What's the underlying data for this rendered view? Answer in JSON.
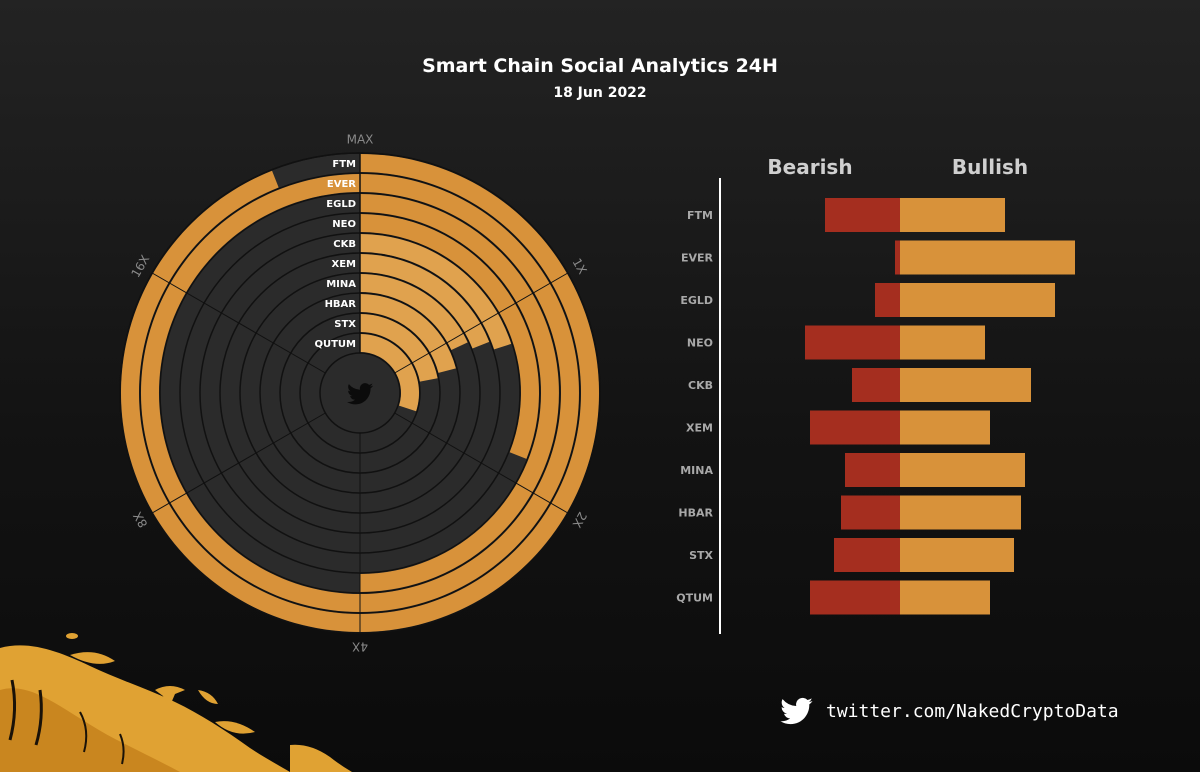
{
  "header": {
    "title": "Smart Chain Social Analytics 24H",
    "subtitle": "18 Jun 2022"
  },
  "footer": {
    "handle": "twitter.com/NakedCryptoData",
    "icon": "twitter-bird-icon"
  },
  "center_icon": "twitter-bird-icon",
  "colors": {
    "accent": "#d8923a",
    "accent_light": "#e0a24e",
    "bearish": "#a52e1f",
    "ring_bg": "#2b2b2b",
    "ring_line": "#111111"
  },
  "chart_data": [
    {
      "type": "radial-bar",
      "scale": "log",
      "axis_ticks": [
        "MAX",
        "1X",
        "2X",
        "4X",
        "8X",
        "16X"
      ],
      "categories": [
        "FTM",
        "EVER",
        "EGLD",
        "NEO",
        "CKB",
        "XEM",
        "MINA",
        "HBAR",
        "STX",
        "QUTUM"
      ],
      "values_fraction_of_max": [
        0.94,
        1.0,
        0.5,
        0.31,
        0.2,
        0.19,
        0.18,
        0.21,
        0.22,
        0.3
      ]
    },
    {
      "type": "bar",
      "orientation": "horizontal-diverging",
      "legend": [
        "Bearish",
        "Bullish"
      ],
      "categories": [
        "FTM",
        "EVER",
        "EGLD",
        "NEO",
        "CKB",
        "XEM",
        "MINA",
        "HBAR",
        "STX",
        "QTUM"
      ],
      "series": [
        {
          "name": "Bearish",
          "values": [
            75,
            5,
            25,
            95,
            48,
            90,
            55,
            59,
            66,
            90
          ]
        },
        {
          "name": "Bullish",
          "values": [
            105,
            175,
            155,
            85,
            131,
            90,
            125,
            121,
            114,
            90
          ]
        }
      ]
    }
  ]
}
